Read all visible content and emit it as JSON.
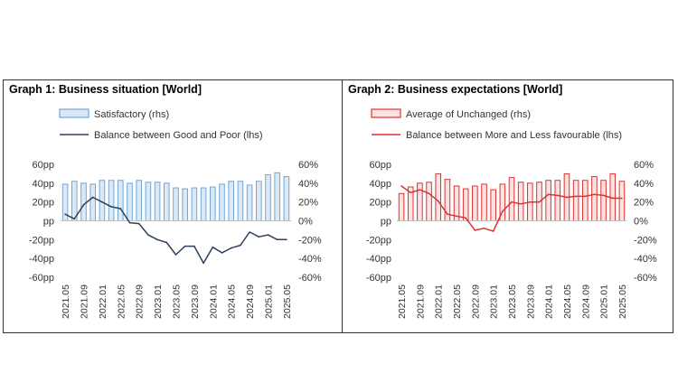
{
  "charts": [
    {
      "title": "Graph 1: Business situation [World]",
      "chart_data": {
        "type": "bar",
        "x": [
          "2021.05",
          "2021.07",
          "2021.09",
          "2021.11",
          "2022.01",
          "2022.03",
          "2022.05",
          "2022.07",
          "2022.09",
          "2022.11",
          "2023.01",
          "2023.03",
          "2023.05",
          "2023.07",
          "2023.09",
          "2023.11",
          "2024.01",
          "2024.03",
          "2024.05",
          "2024.07",
          "2024.09",
          "2024.11",
          "2025.01",
          "2025.03",
          "2025.05"
        ],
        "x_tick_labels": [
          "2021.05",
          "2021.09",
          "2022.01",
          "2022.05",
          "2022.09",
          "2023.01",
          "2023.05",
          "2023.09",
          "2024.01",
          "2024.05",
          "2024.09",
          "2025.01",
          "2025.05"
        ],
        "series": [
          {
            "name": "Satisfactory (rhs)",
            "kind": "bar",
            "axis": "right",
            "values": [
              39,
              42,
              40,
              39,
              43,
              43,
              43,
              40,
              43,
              41,
              41,
              40,
              35,
              34,
              35,
              35,
              36,
              39,
              42,
              42,
              38,
              42,
              49,
              51,
              47
            ]
          },
          {
            "name": "Balance between Good and Poor (lhs)",
            "kind": "line",
            "axis": "left",
            "values": [
              7,
              2,
              17,
              25,
              20,
              15,
              13,
              -2,
              -3,
              -15,
              -20,
              -23,
              -36,
              -27,
              -27,
              -45,
              -28,
              -34,
              -29,
              -26,
              -12,
              -17,
              -15,
              -20,
              -20
            ]
          }
        ],
        "y_left": {
          "ticks": [
            60,
            40,
            20,
            0,
            -20,
            -40,
            -60
          ],
          "tick_labels": [
            "60pp",
            "40pp",
            "20pp",
            "pp",
            "-20pp",
            "-40pp",
            "-60pp"
          ],
          "ylim": [
            -60,
            60
          ]
        },
        "y_right": {
          "ticks": [
            60,
            40,
            20,
            0,
            -20,
            -40,
            -60
          ],
          "tick_labels": [
            "60%",
            "40%",
            "20%",
            "0%",
            "-20%",
            "-40%",
            "-60%"
          ],
          "ylim": [
            -60,
            60
          ]
        },
        "grid": false,
        "legend_placement": "top-left",
        "colors": {
          "bar_fill": "#dbe9f6",
          "bar_stroke": "#6fa8dc",
          "line": "#2e3f5e"
        }
      }
    },
    {
      "title": "Graph 2: Business expectations [World]",
      "chart_data": {
        "type": "bar",
        "x": [
          "2021.05",
          "2021.07",
          "2021.09",
          "2021.11",
          "2022.01",
          "2022.03",
          "2022.05",
          "2022.07",
          "2022.09",
          "2022.11",
          "2023.01",
          "2023.03",
          "2023.05",
          "2023.07",
          "2023.09",
          "2023.11",
          "2024.01",
          "2024.03",
          "2024.05",
          "2024.07",
          "2024.09",
          "2024.11",
          "2025.01",
          "2025.03",
          "2025.05"
        ],
        "x_tick_labels": [
          "2021.05",
          "2021.09",
          "2022.01",
          "2022.05",
          "2022.09",
          "2023.01",
          "2023.05",
          "2023.09",
          "2024.01",
          "2024.05",
          "2024.09",
          "2025.01",
          "2025.05"
        ],
        "series": [
          {
            "name": "Average of Unchanged (rhs)",
            "kind": "bar",
            "axis": "right",
            "values": [
              29,
              36,
              40,
              41,
              50,
              44,
              37,
              34,
              37,
              39,
              33,
              39,
              46,
              41,
              40,
              41,
              43,
              43,
              50,
              43,
              43,
              47,
              43,
              50,
              42
            ]
          },
          {
            "name": "Balance between More and Less favourable (lhs)",
            "kind": "line",
            "axis": "left",
            "values": [
              37,
              30,
              33,
              29,
              21,
              7,
              5,
              3,
              -10,
              -8,
              -11,
              10,
              20,
              18,
              20,
              20,
              28,
              27,
              25,
              26,
              26,
              28,
              27,
              24,
              24
            ]
          }
        ],
        "y_left": {
          "ticks": [
            60,
            40,
            20,
            0,
            -20,
            -40,
            -60
          ],
          "tick_labels": [
            "60pp",
            "40pp",
            "20pp",
            "pp",
            "-20pp",
            "-40pp",
            "-60pp"
          ],
          "ylim": [
            -60,
            60
          ]
        },
        "y_right": {
          "ticks": [
            60,
            40,
            20,
            0,
            -20,
            -40,
            -60
          ],
          "tick_labels": [
            "60%",
            "40%",
            "20%",
            "0%",
            "-20%",
            "-40%",
            "-60%"
          ],
          "ylim": [
            -60,
            60
          ]
        },
        "grid": false,
        "legend_placement": "top-left",
        "colors": {
          "bar_fill": "#fde2e2",
          "bar_stroke": "#e03131",
          "line": "#e03131"
        }
      }
    }
  ]
}
